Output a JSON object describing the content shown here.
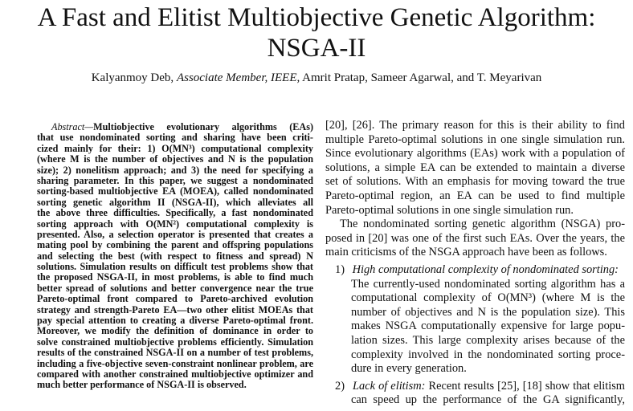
{
  "title": [
    "A Fast and Elitist Multiobjective Genetic Algorithm:",
    "NSGA-II"
  ],
  "authors": {
    "a1": "Kalyanmoy Deb,",
    "a1_role": "Associate Member, IEEE,",
    "rest": "Amrit Pratap, Sameer Agarwal, and T. Meyarivan"
  },
  "abstract": {
    "label": "Abstract—",
    "lines": [
      "Multiobjective evolutionary algorithms (EAs)",
      "that use nondominated sorting and sharing have been criti-",
      "cized mainly for their: 1) O(MN³) computational complexity",
      "(where M is the number of objectives and N is the population",
      "size); 2) nonelitism approach; and 3) the need for specifying a",
      "sharing parameter. In this paper, we suggest a nondominated",
      "sorting-based multiobjective EA (MOEA), called nondominated",
      "sorting genetic algorithm II (NSGA-II), which alleviates all",
      "the above three difficulties. Specifically, a fast nondominated",
      "sorting approach with O(MN²) computational complexity is",
      "presented. Also, a selection operator is presented that creates a",
      "mating pool by combining the parent and offspring populations",
      "and selecting the best (with respect to fitness and spread) N",
      "solutions. Simulation results on difficult test problems show that",
      "the proposed NSGA-II, in most problems, is able to find much",
      "better spread of solutions and better convergence near the true",
      "Pareto-optimal front compared to Pareto-archived evolution",
      "strategy and strength-Pareto EA—two other elitist MOEAs that",
      "pay special attention to creating a diverse Pareto-optimal front.",
      "Moreover, we modify the definition of dominance in order to",
      "solve constrained multiobjective problems efficiently. Simulation",
      "results of the constrained NSGA-II on a number of test problems,",
      "including a five-objective seven-constraint nonlinear problem, are",
      "compared with another constrained multiobjective optimizer and",
      "much better performance of NSGA-II is observed."
    ]
  },
  "body": {
    "para1": [
      "[20], [26]. The primary reason for this is their ability to find",
      "multiple Pareto-optimal solutions in one single simulation run.",
      "Since evolutionary algorithms (EAs) work with a population of",
      "solutions, a simple EA can be extended to maintain a diverse",
      "set of solutions. With an emphasis for moving toward the true",
      "Pareto-optimal region, an EA can be used to find multiple",
      "Pareto-optimal solutions in one single simulation run."
    ],
    "para2": [
      "The nondominated sorting genetic algorithm (NSGA) pro-",
      "posed in [20] was one of the first such EAs. Over the years, the",
      "main criticisms of the NSGA approach have been as follows."
    ],
    "item1": {
      "num": "1)",
      "heading": "High computational complexity of nondominated sorting:",
      "lines": [
        "The currently-used nondominated sorting algorithm has a",
        "computational complexity of O(MN³) (where M is the",
        "number of objectives and N is the population size). This",
        "makes NSGA computationally expensive for large popu-",
        "lation sizes. This large complexity arises because of the",
        "complexity involved in the nondominated sorting proce-",
        "dure in every generation."
      ]
    },
    "item2": {
      "num": "2)",
      "heading": "Lack of elitism:",
      "first_rest": "Recent results [25], [18] show that elitism",
      "lines": [
        "can speed up the performance of the GA significantly,"
      ]
    }
  }
}
